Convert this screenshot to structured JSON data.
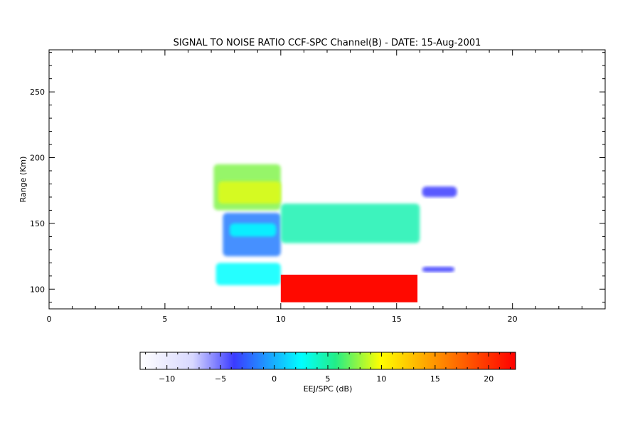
{
  "chart_data": {
    "type": "heatmap",
    "title": "SIGNAL TO NOISE RATIO CCF-SPC Channel(B) - DATE: 15-Aug-2001",
    "xlabel": "",
    "ylabel": "Range (Km)",
    "xlim": [
      0,
      24
    ],
    "ylim": [
      85,
      282
    ],
    "x_ticks": [
      0,
      5,
      10,
      15,
      20
    ],
    "y_ticks": [
      100,
      150,
      200,
      250
    ],
    "grid": false,
    "colorbar": {
      "label": "EEJ/SPC (dB)",
      "range": [
        -12.5,
        22.5
      ],
      "ticks": [
        -10,
        -5,
        0,
        5,
        10,
        15,
        20
      ],
      "colormap": [
        "#ffffff",
        "#3b3bff",
        "#00ffff",
        "#ffff00",
        "#ff8000",
        "#ff0000"
      ]
    },
    "regions": [
      {
        "name": "early-layer-upper",
        "x": [
          7.1,
          10.0
        ],
        "y": [
          160,
          195
        ],
        "snr_db": 6
      },
      {
        "name": "early-layer-upper-core",
        "x": [
          7.3,
          10.0
        ],
        "y": [
          165,
          182
        ],
        "snr_db": 9
      },
      {
        "name": "early-layer-mid",
        "x": [
          7.5,
          10.0
        ],
        "y": [
          125,
          158
        ],
        "snr_db": -4
      },
      {
        "name": "early-layer-mid-core",
        "x": [
          7.8,
          9.8
        ],
        "y": [
          140,
          150
        ],
        "snr_db": 0
      },
      {
        "name": "early-layer-lower",
        "x": [
          7.2,
          10.0
        ],
        "y": [
          103,
          120
        ],
        "snr_db": 0
      },
      {
        "name": "eej-strong",
        "x": [
          10.0,
          15.9
        ],
        "y": [
          90,
          111
        ],
        "snr_db": 22
      },
      {
        "name": "f-region-arc",
        "x": [
          10.0,
          16.0
        ],
        "y": [
          135,
          165
        ],
        "snr_db": 2
      },
      {
        "name": "late-patch-upper",
        "x": [
          16.1,
          17.6
        ],
        "y": [
          170,
          178
        ],
        "snr_db": -6
      },
      {
        "name": "late-patch-lower",
        "x": [
          16.1,
          17.5
        ],
        "y": [
          113,
          117
        ],
        "snr_db": -6
      }
    ]
  }
}
